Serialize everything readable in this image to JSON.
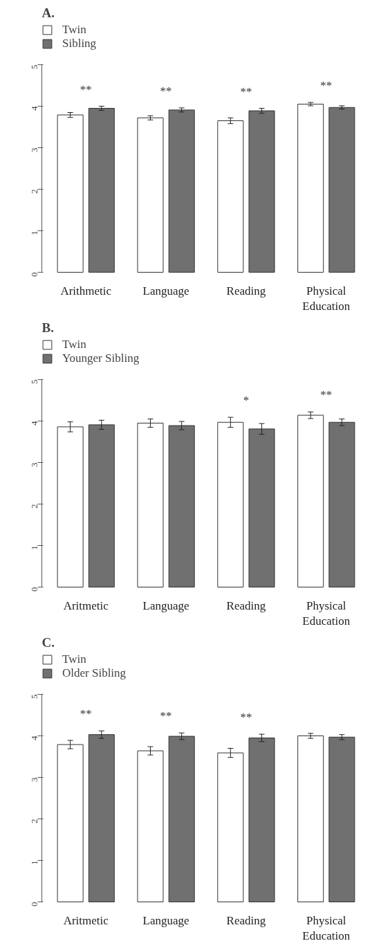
{
  "chart_data": [
    {
      "type": "bar",
      "title": "A.",
      "categories": [
        "Arithmetic",
        "Language",
        "Reading",
        "Physical Education"
      ],
      "ylim": [
        0,
        5
      ],
      "yticks": [
        0,
        1,
        2,
        3,
        4,
        5
      ],
      "grid": false,
      "legend": "top left",
      "series": [
        {
          "name": "Twin",
          "color": "#ffffff",
          "values": [
            3.79,
            3.72,
            3.65,
            4.05
          ],
          "errors": [
            0.06,
            0.05,
            0.07,
            0.04
          ]
        },
        {
          "name": "Sibling",
          "color": "#707070",
          "values": [
            3.95,
            3.91,
            3.89,
            3.97
          ],
          "errors": [
            0.05,
            0.05,
            0.06,
            0.04
          ],
          "value_labels": [
            "**",
            "**",
            "**",
            "**"
          ]
        }
      ]
    },
    {
      "type": "bar",
      "title": "B.",
      "categories": [
        "Aritmetic",
        "Language",
        "Reading",
        "Physical Education"
      ],
      "ylim": [
        0,
        5
      ],
      "yticks": [
        0,
        1,
        2,
        3,
        4,
        5
      ],
      "grid": false,
      "legend": "top left",
      "series": [
        {
          "name": "Twin",
          "color": "#ffffff",
          "values": [
            3.86,
            3.95,
            3.97,
            4.14
          ],
          "errors": [
            0.12,
            0.1,
            0.12,
            0.08
          ]
        },
        {
          "name": "Younger Sibling",
          "color": "#707070",
          "values": [
            3.91,
            3.89,
            3.81,
            3.97
          ],
          "errors": [
            0.11,
            0.1,
            0.13,
            0.08
          ],
          "value_labels": [
            null,
            null,
            "*",
            "**"
          ]
        }
      ]
    },
    {
      "type": "bar",
      "title": "C.",
      "categories": [
        "Aritmetic",
        "Language",
        "Reading",
        "Physical Education"
      ],
      "ylim": [
        0,
        5
      ],
      "yticks": [
        0,
        1,
        2,
        3,
        4,
        5
      ],
      "grid": false,
      "legend": "top left",
      "series": [
        {
          "name": "Twin",
          "color": "#ffffff",
          "values": [
            3.79,
            3.64,
            3.59,
            4.0
          ],
          "errors": [
            0.1,
            0.1,
            0.11,
            0.06
          ]
        },
        {
          "name": "Older Sibling",
          "color": "#707070",
          "values": [
            4.03,
            3.99,
            3.95,
            3.97
          ],
          "errors": [
            0.09,
            0.08,
            0.09,
            0.06
          ],
          "value_labels": [
            "**",
            "**",
            "**",
            null
          ]
        }
      ]
    }
  ]
}
